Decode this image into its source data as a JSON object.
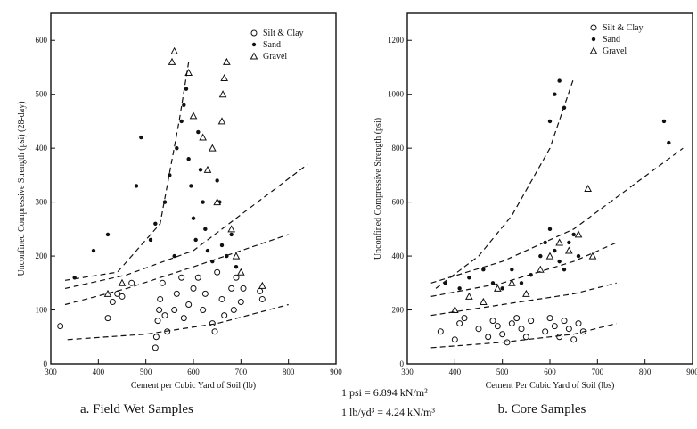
{
  "chart_data": [
    {
      "type": "scatter",
      "caption": "a. Field Wet Samples",
      "xlabel": "Cement per Cubic Yard of Soil (lb)",
      "ylabel": "Unconfined Compressive Strength (psi) (28-day)",
      "xlim": [
        300,
        900
      ],
      "ylim": [
        0,
        650
      ],
      "xticks": [
        300,
        400,
        500,
        600,
        700,
        800,
        900
      ],
      "yticks": [
        0,
        100,
        200,
        300,
        400,
        500,
        600
      ],
      "legend": [
        "Silt & Clay",
        "Sand",
        "Gravel"
      ],
      "legend_position": "top-right",
      "series": [
        {
          "name": "Silt & Clay",
          "marker": "circle",
          "points": [
            [
              320,
              70
            ],
            [
              420,
              85
            ],
            [
              430,
              115
            ],
            [
              440,
              130
            ],
            [
              450,
              125
            ],
            [
              470,
              150
            ],
            [
              520,
              30
            ],
            [
              522,
              50
            ],
            [
              525,
              80
            ],
            [
              528,
              100
            ],
            [
              530,
              120
            ],
            [
              535,
              150
            ],
            [
              540,
              90
            ],
            [
              545,
              60
            ],
            [
              560,
              100
            ],
            [
              565,
              130
            ],
            [
              575,
              160
            ],
            [
              580,
              85
            ],
            [
              590,
              110
            ],
            [
              600,
              140
            ],
            [
              610,
              160
            ],
            [
              620,
              100
            ],
            [
              625,
              130
            ],
            [
              640,
              75
            ],
            [
              645,
              60
            ],
            [
              650,
              170
            ],
            [
              660,
              120
            ],
            [
              665,
              90
            ],
            [
              680,
              140
            ],
            [
              685,
              100
            ],
            [
              690,
              160
            ],
            [
              700,
              115
            ],
            [
              705,
              140
            ],
            [
              740,
              135
            ],
            [
              745,
              120
            ]
          ]
        },
        {
          "name": "Sand",
          "marker": "dot",
          "points": [
            [
              350,
              160
            ],
            [
              390,
              210
            ],
            [
              420,
              240
            ],
            [
              480,
              330
            ],
            [
              490,
              420
            ],
            [
              510,
              230
            ],
            [
              520,
              260
            ],
            [
              540,
              300
            ],
            [
              550,
              350
            ],
            [
              560,
              200
            ],
            [
              565,
              400
            ],
            [
              575,
              450
            ],
            [
              580,
              480
            ],
            [
              585,
              510
            ],
            [
              590,
              380
            ],
            [
              595,
              330
            ],
            [
              600,
              270
            ],
            [
              605,
              230
            ],
            [
              610,
              430
            ],
            [
              615,
              360
            ],
            [
              620,
              300
            ],
            [
              625,
              250
            ],
            [
              630,
              210
            ],
            [
              640,
              190
            ],
            [
              650,
              340
            ],
            [
              655,
              300
            ],
            [
              660,
              220
            ],
            [
              670,
              200
            ],
            [
              680,
              240
            ],
            [
              690,
              180
            ]
          ]
        },
        {
          "name": "Gravel",
          "marker": "triangle",
          "points": [
            [
              420,
              130
            ],
            [
              450,
              150
            ],
            [
              555,
              560
            ],
            [
              560,
              580
            ],
            [
              590,
              540
            ],
            [
              600,
              460
            ],
            [
              620,
              420
            ],
            [
              630,
              360
            ],
            [
              640,
              400
            ],
            [
              650,
              300
            ],
            [
              660,
              450
            ],
            [
              662,
              500
            ],
            [
              665,
              530
            ],
            [
              670,
              560
            ],
            [
              680,
              250
            ],
            [
              690,
              200
            ],
            [
              700,
              170
            ],
            [
              745,
              145
            ]
          ]
        }
      ]
    },
    {
      "type": "scatter",
      "caption": "b. Core Samples",
      "xlabel": "Cement Per Cubic Yard of Soil (lbs)",
      "ylabel": "Unconfined Compressive Strength (psi)",
      "xlim": [
        300,
        900
      ],
      "ylim": [
        0,
        1300
      ],
      "xticks": [
        300,
        400,
        500,
        600,
        700,
        800,
        900
      ],
      "yticks": [
        0,
        200,
        400,
        600,
        800,
        1000,
        1200
      ],
      "legend": [
        "Silt & Clay",
        "Sand",
        "Gravel"
      ],
      "legend_position": "top-right",
      "series": [
        {
          "name": "Silt & Clay",
          "marker": "circle",
          "points": [
            [
              370,
              120
            ],
            [
              400,
              90
            ],
            [
              410,
              150
            ],
            [
              420,
              170
            ],
            [
              450,
              130
            ],
            [
              470,
              100
            ],
            [
              480,
              160
            ],
            [
              490,
              140
            ],
            [
              500,
              110
            ],
            [
              510,
              80
            ],
            [
              520,
              150
            ],
            [
              530,
              170
            ],
            [
              540,
              130
            ],
            [
              550,
              100
            ],
            [
              560,
              160
            ],
            [
              590,
              120
            ],
            [
              600,
              170
            ],
            [
              610,
              140
            ],
            [
              620,
              100
            ],
            [
              630,
              160
            ],
            [
              640,
              130
            ],
            [
              650,
              90
            ],
            [
              660,
              150
            ],
            [
              670,
              120
            ]
          ]
        },
        {
          "name": "Sand",
          "marker": "dot",
          "points": [
            [
              380,
              300
            ],
            [
              410,
              280
            ],
            [
              430,
              320
            ],
            [
              460,
              350
            ],
            [
              480,
              300
            ],
            [
              500,
              280
            ],
            [
              520,
              350
            ],
            [
              540,
              300
            ],
            [
              560,
              330
            ],
            [
              580,
              400
            ],
            [
              590,
              450
            ],
            [
              600,
              500
            ],
            [
              610,
              420
            ],
            [
              620,
              380
            ],
            [
              630,
              350
            ],
            [
              640,
              450
            ],
            [
              650,
              480
            ],
            [
              660,
              400
            ],
            [
              600,
              900
            ],
            [
              610,
              1000
            ],
            [
              620,
              1050
            ],
            [
              630,
              950
            ],
            [
              840,
              900
            ],
            [
              850,
              820
            ]
          ]
        },
        {
          "name": "Gravel",
          "marker": "triangle",
          "points": [
            [
              400,
              200
            ],
            [
              430,
              250
            ],
            [
              460,
              230
            ],
            [
              490,
              280
            ],
            [
              520,
              300
            ],
            [
              550,
              260
            ],
            [
              580,
              350
            ],
            [
              600,
              400
            ],
            [
              620,
              450
            ],
            [
              640,
              420
            ],
            [
              660,
              480
            ],
            [
              680,
              650
            ],
            [
              690,
              400
            ]
          ]
        }
      ]
    }
  ],
  "figure": {
    "conversion_psi": "1 psi = 6.894 kN/m²",
    "conversion_lb": "1 lb/yd³ = 4.24 kN/m³"
  }
}
